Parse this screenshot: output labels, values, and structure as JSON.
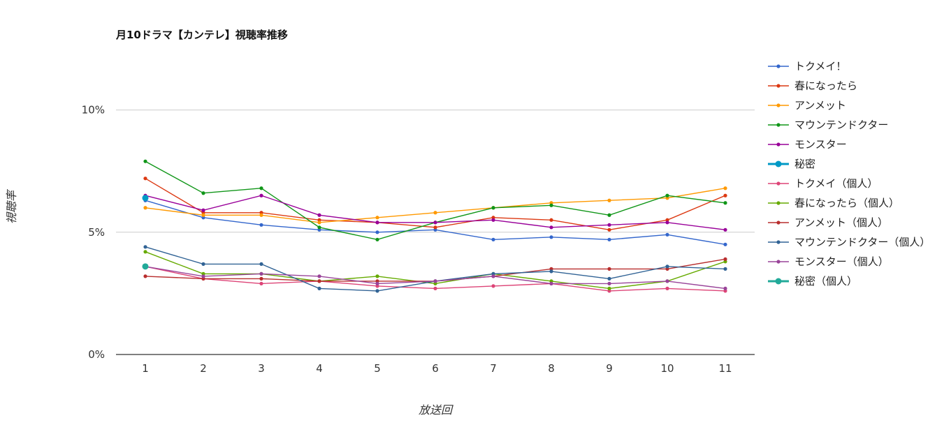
{
  "chart_data": {
    "type": "line",
    "title": "月10ドラマ【カンテレ】視聴率推移",
    "xlabel": "放送回",
    "ylabel": "視聴率",
    "categories": [
      "1",
      "2",
      "3",
      "4",
      "5",
      "6",
      "7",
      "8",
      "9",
      "10",
      "11"
    ],
    "ylim": [
      0,
      12.5
    ],
    "yticks": [
      {
        "value": 0,
        "label": "0%"
      },
      {
        "value": 5,
        "label": "5%"
      },
      {
        "value": 10,
        "label": "10%"
      }
    ],
    "grid": true,
    "legend_position": "right",
    "series": [
      {
        "name": "トクメイ！",
        "color": "#3366cc",
        "emphasis": false,
        "values": [
          6.3,
          5.6,
          5.3,
          5.1,
          5.0,
          5.1,
          4.7,
          4.8,
          4.7,
          4.9,
          4.5
        ]
      },
      {
        "name": "春になったら",
        "color": "#dc3912",
        "emphasis": false,
        "values": [
          7.2,
          5.8,
          5.8,
          5.5,
          5.4,
          5.2,
          5.6,
          5.5,
          5.1,
          5.5,
          6.5
        ]
      },
      {
        "name": "アンメット",
        "color": "#ff9900",
        "emphasis": false,
        "values": [
          6.0,
          5.7,
          5.7,
          5.4,
          5.6,
          5.8,
          6.0,
          6.2,
          6.3,
          6.4,
          6.8
        ]
      },
      {
        "name": "マウンテンドクター",
        "color": "#109618",
        "emphasis": false,
        "values": [
          7.9,
          6.6,
          6.8,
          5.2,
          4.7,
          5.4,
          6.0,
          6.1,
          5.7,
          6.5,
          6.2
        ]
      },
      {
        "name": "モンスター",
        "color": "#990099",
        "emphasis": false,
        "values": [
          6.5,
          5.9,
          6.5,
          5.7,
          5.4,
          5.4,
          5.5,
          5.2,
          5.3,
          5.4,
          5.1
        ]
      },
      {
        "name": "秘密",
        "color": "#0099c6",
        "emphasis": true,
        "values": [
          6.4,
          null,
          null,
          null,
          null,
          null,
          null,
          null,
          null,
          null,
          null
        ]
      },
      {
        "name": "トクメイ（個人）",
        "color": "#dd4477",
        "emphasis": false,
        "values": [
          3.6,
          3.1,
          2.9,
          3.0,
          2.8,
          2.7,
          2.8,
          2.9,
          2.6,
          2.7,
          2.6
        ]
      },
      {
        "name": "春になったら（個人）",
        "color": "#66aa00",
        "emphasis": false,
        "values": [
          4.2,
          3.3,
          3.3,
          3.0,
          3.2,
          2.9,
          3.3,
          3.0,
          2.7,
          3.0,
          3.8
        ]
      },
      {
        "name": "アンメット（個人）",
        "color": "#b82e2e",
        "emphasis": false,
        "values": [
          3.2,
          3.1,
          3.1,
          3.0,
          3.0,
          3.0,
          3.2,
          3.5,
          3.5,
          3.5,
          3.9
        ]
      },
      {
        "name": "マウンテンドクター（個人）",
        "color": "#316395",
        "emphasis": false,
        "values": [
          4.4,
          3.7,
          3.7,
          2.7,
          2.6,
          3.0,
          3.3,
          3.4,
          3.1,
          3.6,
          3.5
        ]
      },
      {
        "name": "モンスター（個人）",
        "color": "#994499",
        "emphasis": false,
        "values": [
          3.6,
          3.2,
          3.3,
          3.2,
          2.9,
          3.0,
          3.2,
          2.9,
          2.9,
          3.0,
          2.7
        ]
      },
      {
        "name": "秘密（個人）",
        "color": "#22aa99",
        "emphasis": true,
        "values": [
          3.6,
          null,
          null,
          null,
          null,
          null,
          null,
          null,
          null,
          null,
          null
        ]
      }
    ]
  }
}
